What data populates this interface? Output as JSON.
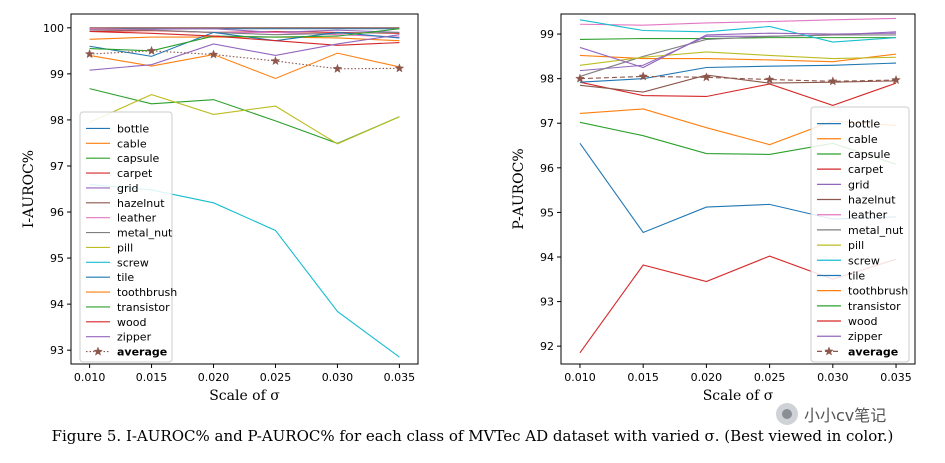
{
  "figure_caption": "Figure 5. I-AUROC% and P-AUROC% for each class of MVTec AD dataset with varied σ. (Best viewed in color.)",
  "watermark": {
    "text": "小小cv笔记",
    "icon": "wechat-logo-icon"
  },
  "chart_data": [
    {
      "type": "line",
      "title": "",
      "xlabel": "Scale of σ",
      "ylabel": "I-AUROC%",
      "x": [
        0.01,
        0.015,
        0.02,
        0.025,
        0.03,
        0.035
      ],
      "x_tick_labels": [
        "0.010",
        "0.015",
        "0.020",
        "0.025",
        "0.030",
        "0.035"
      ],
      "xlim": [
        0.0085,
        0.0365
      ],
      "ylim": [
        92.7,
        100.3
      ],
      "y_ticks": [
        93,
        94,
        95,
        96,
        97,
        98,
        99,
        100
      ],
      "grid": false,
      "legend_position": "lower left",
      "series": [
        {
          "name": "bottle",
          "color": "#1f77b4",
          "style": "solid",
          "values": [
            99.98,
            99.98,
            99.98,
            99.98,
            99.98,
            99.98
          ]
        },
        {
          "name": "cable",
          "color": "#ff7f0e",
          "style": "solid",
          "values": [
            99.75,
            99.8,
            99.8,
            99.8,
            99.78,
            99.72
          ]
        },
        {
          "name": "capsule",
          "color": "#2ca02c",
          "style": "solid",
          "values": [
            98.68,
            98.35,
            98.44,
            97.98,
            97.49,
            98.07
          ]
        },
        {
          "name": "carpet",
          "color": "#d62728",
          "style": "solid",
          "values": [
            99.92,
            99.94,
            99.9,
            99.92,
            99.9,
            99.88
          ]
        },
        {
          "name": "grid",
          "color": "#9467bd",
          "style": "solid",
          "values": [
            99.96,
            99.97,
            99.98,
            99.9,
            99.95,
            99.9
          ]
        },
        {
          "name": "hazelnut",
          "color": "#8c564b",
          "style": "solid",
          "values": [
            100.0,
            100.0,
            100.0,
            100.0,
            100.0,
            100.0
          ]
        },
        {
          "name": "leather",
          "color": "#e377c2",
          "style": "solid",
          "values": [
            99.98,
            99.95,
            99.9,
            99.9,
            99.85,
            99.8
          ]
        },
        {
          "name": "metal_nut",
          "color": "#7f7f7f",
          "style": "solid",
          "values": [
            99.95,
            99.95,
            99.9,
            99.85,
            99.88,
            99.9
          ]
        },
        {
          "name": "pill",
          "color": "#bcbd22",
          "style": "solid",
          "values": [
            97.95,
            98.55,
            98.12,
            98.3,
            97.48,
            98.07
          ]
        },
        {
          "name": "screw",
          "color": "#17becf",
          "style": "solid",
          "values": [
            96.6,
            96.48,
            96.2,
            95.6,
            93.84,
            92.85
          ]
        },
        {
          "name": "tile",
          "color": "#1f77b4",
          "style": "solid",
          "values": [
            99.6,
            99.38,
            99.9,
            99.72,
            99.9,
            99.78
          ]
        },
        {
          "name": "toothbrush",
          "color": "#ff7f0e",
          "style": "solid",
          "values": [
            99.4,
            99.17,
            99.42,
            98.9,
            99.45,
            99.15
          ]
        },
        {
          "name": "transistor",
          "color": "#2ca02c",
          "style": "solid",
          "values": [
            99.55,
            99.5,
            99.82,
            99.8,
            99.82,
            99.98
          ]
        },
        {
          "name": "wood",
          "color": "#d62728",
          "style": "solid",
          "values": [
            99.92,
            99.88,
            99.82,
            99.72,
            99.62,
            99.68
          ]
        },
        {
          "name": "zipper",
          "color": "#9467bd",
          "style": "solid",
          "values": [
            99.08,
            99.2,
            99.65,
            99.4,
            99.65,
            99.85
          ]
        },
        {
          "name": "average",
          "color": "#8c564b",
          "style": "dotted",
          "marker": "star",
          "bold_label": true,
          "values": [
            99.43,
            99.5,
            99.42,
            99.28,
            99.11,
            99.12
          ]
        }
      ]
    },
    {
      "type": "line",
      "title": "",
      "xlabel": "Scale of σ",
      "ylabel": "P-AUROC%",
      "x": [
        0.01,
        0.015,
        0.02,
        0.025,
        0.03,
        0.035
      ],
      "x_tick_labels": [
        "0.010",
        "0.015",
        "0.020",
        "0.025",
        "0.030",
        "0.035"
      ],
      "xlim": [
        0.0085,
        0.0365
      ],
      "ylim": [
        91.6,
        99.45
      ],
      "y_ticks": [
        92,
        93,
        94,
        95,
        96,
        97,
        98,
        99
      ],
      "grid": false,
      "legend_position": "lower right",
      "series": [
        {
          "name": "bottle",
          "color": "#1f77b4",
          "style": "solid",
          "values": [
            96.55,
            94.55,
            95.12,
            95.18,
            94.85,
            94.9
          ]
        },
        {
          "name": "cable",
          "color": "#ff7f0e",
          "style": "solid",
          "values": [
            98.52,
            98.45,
            98.45,
            98.42,
            98.38,
            98.55
          ]
        },
        {
          "name": "capsule",
          "color": "#2ca02c",
          "style": "solid",
          "values": [
            98.88,
            98.9,
            98.9,
            98.92,
            98.92,
            98.92
          ]
        },
        {
          "name": "carpet",
          "color": "#d62728",
          "style": "solid",
          "values": [
            97.92,
            97.62,
            97.6,
            97.88,
            97.4,
            97.9
          ]
        },
        {
          "name": "grid",
          "color": "#9467bd",
          "style": "solid",
          "values": [
            98.18,
            98.3,
            98.95,
            98.95,
            98.98,
            99.05
          ]
        },
        {
          "name": "hazelnut",
          "color": "#8c564b",
          "style": "solid",
          "values": [
            97.85,
            97.7,
            98.08,
            97.9,
            97.92,
            97.95
          ]
        },
        {
          "name": "leather",
          "color": "#e377c2",
          "style": "solid",
          "values": [
            99.22,
            99.2,
            99.25,
            99.28,
            99.32,
            99.35
          ]
        },
        {
          "name": "metal_nut",
          "color": "#7f7f7f",
          "style": "solid",
          "values": [
            98.05,
            98.5,
            98.88,
            98.95,
            98.98,
            98.98
          ]
        },
        {
          "name": "pill",
          "color": "#bcbd22",
          "style": "solid",
          "values": [
            98.3,
            98.48,
            98.6,
            98.52,
            98.45,
            98.48
          ]
        },
        {
          "name": "screw",
          "color": "#17becf",
          "style": "solid",
          "values": [
            99.32,
            99.08,
            99.05,
            99.17,
            98.82,
            98.92
          ]
        },
        {
          "name": "tile",
          "color": "#1f77b4",
          "style": "solid",
          "values": [
            97.92,
            98.0,
            98.25,
            98.28,
            98.3,
            98.35
          ]
        },
        {
          "name": "toothbrush",
          "color": "#ff7f0e",
          "style": "solid",
          "values": [
            97.22,
            97.32,
            96.9,
            96.52,
            97.05,
            96.95
          ]
        },
        {
          "name": "transistor",
          "color": "#2ca02c",
          "style": "solid",
          "values": [
            97.02,
            96.72,
            96.32,
            96.3,
            96.55,
            96.08
          ]
        },
        {
          "name": "wood",
          "color": "#d62728",
          "style": "solid",
          "values": [
            91.85,
            93.82,
            93.45,
            94.02,
            93.5,
            93.95
          ]
        },
        {
          "name": "zipper",
          "color": "#9467bd",
          "style": "solid",
          "values": [
            98.7,
            98.25,
            98.98,
            99.02,
            99.0,
            99.02
          ]
        },
        {
          "name": "average",
          "color": "#8c564b",
          "style": "dashed",
          "marker": "star",
          "bold_label": true,
          "values": [
            98.0,
            98.05,
            98.03,
            97.98,
            97.94,
            97.97
          ]
        }
      ]
    }
  ]
}
